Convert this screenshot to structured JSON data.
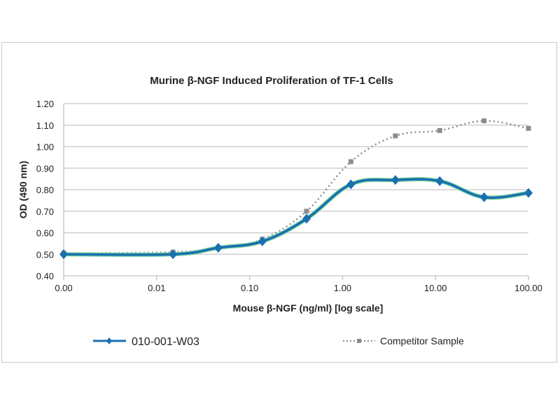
{
  "chart_data": {
    "type": "line",
    "title": "Murine β-NGF Induced Proliferation of TF-1 Cells",
    "xlabel": "Mouse β-NGF (ng/ml) [log scale]",
    "ylabel": "OD (490 nm)",
    "x_scale": "log",
    "xlim": [
      0.001,
      100
    ],
    "ylim": [
      0.4,
      1.2
    ],
    "x_tick_labels": [
      "0.00",
      "0.01",
      "0.10",
      "1.00",
      "10.00",
      "100.00"
    ],
    "y_tick_labels": [
      "0.40",
      "0.50",
      "0.60",
      "0.70",
      "0.80",
      "0.90",
      "1.00",
      "1.10",
      "1.20"
    ],
    "grid": "horizontal",
    "legend_position": "bottom",
    "x": [
      0.001,
      0.015,
      0.046,
      0.137,
      0.41,
      1.23,
      3.7,
      11.1,
      33.3,
      100
    ],
    "series": [
      {
        "name": "010-001-W03",
        "color": "#1a6fb0",
        "style": "solid",
        "marker": "diamond",
        "values": [
          0.5,
          0.5,
          0.53,
          0.56,
          0.665,
          0.825,
          0.845,
          0.84,
          0.765,
          0.785
        ]
      },
      {
        "name": "Competitor Sample",
        "color": "#8c8c8c",
        "style": "dotted",
        "marker": "square",
        "values": [
          0.505,
          0.51,
          0.53,
          0.57,
          0.7,
          0.93,
          1.05,
          1.075,
          1.12,
          1.085
        ]
      }
    ]
  }
}
